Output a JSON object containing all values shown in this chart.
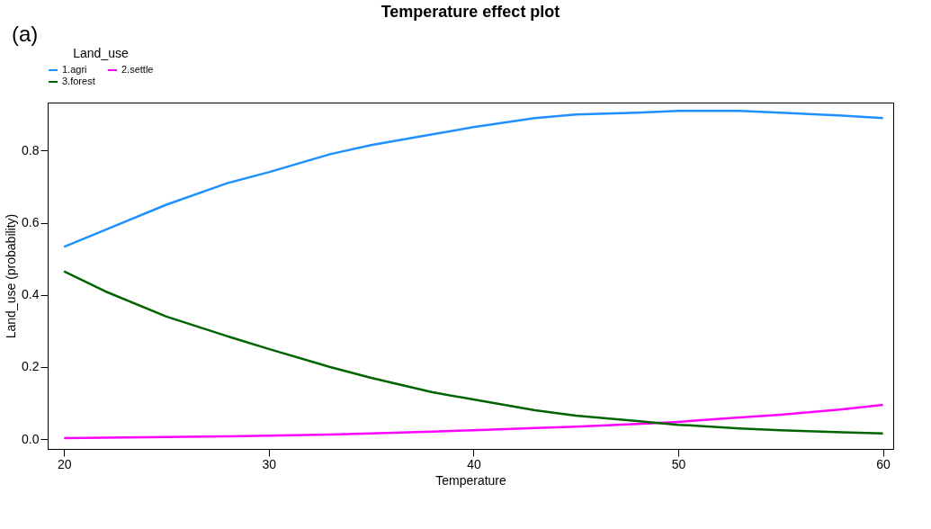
{
  "chart_data": {
    "type": "line",
    "title": "Temperature effect plot",
    "xlabel": "Temperature",
    "ylabel": "Land_use (probability)",
    "legend_title": "Land_use",
    "annotations": [
      "(a)"
    ],
    "x": [
      20,
      22,
      25,
      28,
      30,
      33,
      35,
      38,
      40,
      43,
      45,
      48,
      50,
      53,
      55,
      58,
      60
    ],
    "series": [
      {
        "name": "1.agri",
        "color": "#1e90ff",
        "values": [
          0.533,
          0.58,
          0.65,
          0.71,
          0.74,
          0.79,
          0.815,
          0.845,
          0.865,
          0.89,
          0.9,
          0.905,
          0.91,
          0.91,
          0.905,
          0.897,
          0.89
        ]
      },
      {
        "name": "2.settle",
        "color": "#ff00ff",
        "values": [
          0.003,
          0.004,
          0.006,
          0.008,
          0.01,
          0.013,
          0.016,
          0.021,
          0.025,
          0.031,
          0.035,
          0.042,
          0.048,
          0.06,
          0.068,
          0.083,
          0.095
        ]
      },
      {
        "name": "3.forest",
        "color": "#006400",
        "values": [
          0.465,
          0.41,
          0.34,
          0.285,
          0.25,
          0.2,
          0.17,
          0.13,
          0.11,
          0.08,
          0.065,
          0.05,
          0.04,
          0.03,
          0.025,
          0.019,
          0.016
        ]
      }
    ],
    "xlim": [
      19.2,
      60.5
    ],
    "ylim": [
      -0.027,
      0.933
    ],
    "xticks": [
      20,
      30,
      40,
      50,
      60
    ],
    "yticks": [
      {
        "value": 0,
        "label": "0.0"
      },
      0.2,
      0.4,
      0.6,
      0.8
    ],
    "grid": false,
    "legend": "top",
    "marker": "none",
    "line_style": "solid"
  }
}
